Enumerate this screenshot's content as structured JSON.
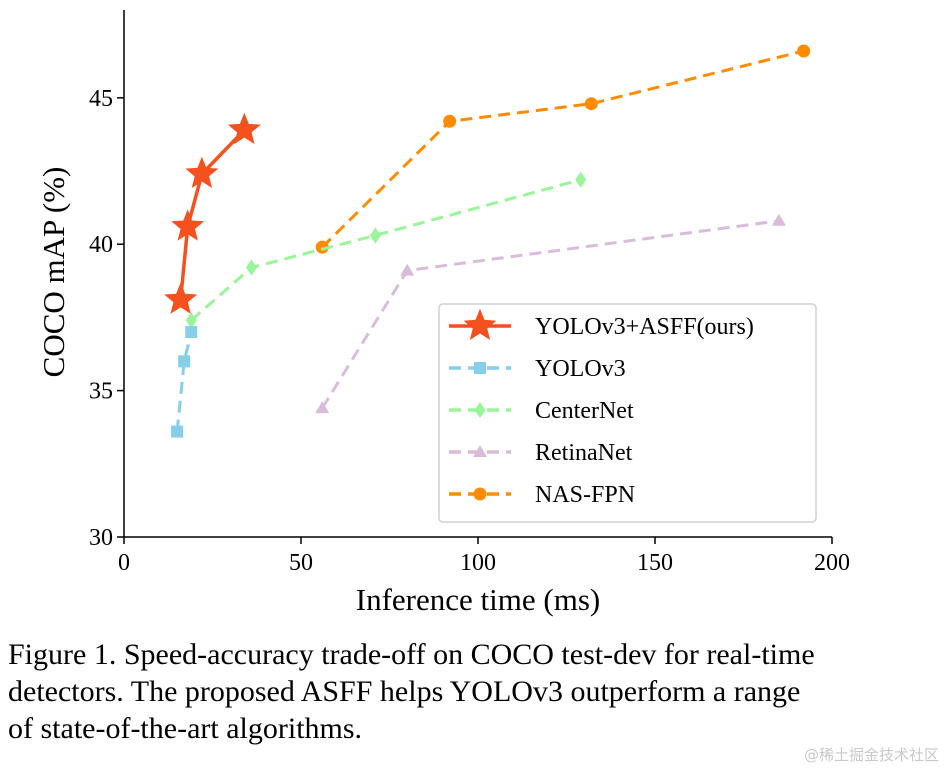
{
  "chart_data": {
    "type": "line",
    "xlabel": "Inference time (ms)",
    "ylabel": "COCO mAP (%)",
    "xlim": [
      0,
      200
    ],
    "ylim": [
      30,
      48
    ],
    "xticks": [
      0,
      50,
      100,
      150,
      200
    ],
    "yticks": [
      30,
      35,
      40,
      45
    ],
    "grid": false,
    "legend_position": "lower-right",
    "series": [
      {
        "name": "YOLOv3+ASFF(ours)",
        "color": "#f4511e",
        "marker": "star",
        "dashed": false,
        "x": [
          16,
          18,
          22,
          34
        ],
        "y": [
          38.1,
          40.6,
          42.4,
          43.9
        ]
      },
      {
        "name": "YOLOv3",
        "color": "#87ceeb",
        "marker": "square",
        "dashed": true,
        "x": [
          15,
          17,
          19
        ],
        "y": [
          33.6,
          36.0,
          37.0
        ]
      },
      {
        "name": "CenterNet",
        "color": "#98f598",
        "marker": "diamond",
        "dashed": true,
        "x": [
          19,
          36,
          71,
          129
        ],
        "y": [
          37.4,
          39.2,
          40.3,
          42.2
        ]
      },
      {
        "name": "RetinaNet",
        "color": "#d9bcd9",
        "marker": "triangle",
        "dashed": true,
        "x": [
          56,
          80,
          185
        ],
        "y": [
          34.4,
          39.1,
          40.8
        ]
      },
      {
        "name": "NAS-FPN",
        "color": "#ff8c00",
        "marker": "circle",
        "dashed": true,
        "x": [
          56,
          92,
          132,
          192
        ],
        "y": [
          39.9,
          44.2,
          44.8,
          46.6
        ]
      }
    ]
  },
  "caption": {
    "lines": [
      "Figure 1. Speed-accuracy trade-off on COCO test-dev for real-time",
      "detectors. The proposed ASFF helps YOLOv3 outperform a range",
      "of state-of-the-art algorithms."
    ]
  },
  "watermark": "@稀土掘金技术社区"
}
